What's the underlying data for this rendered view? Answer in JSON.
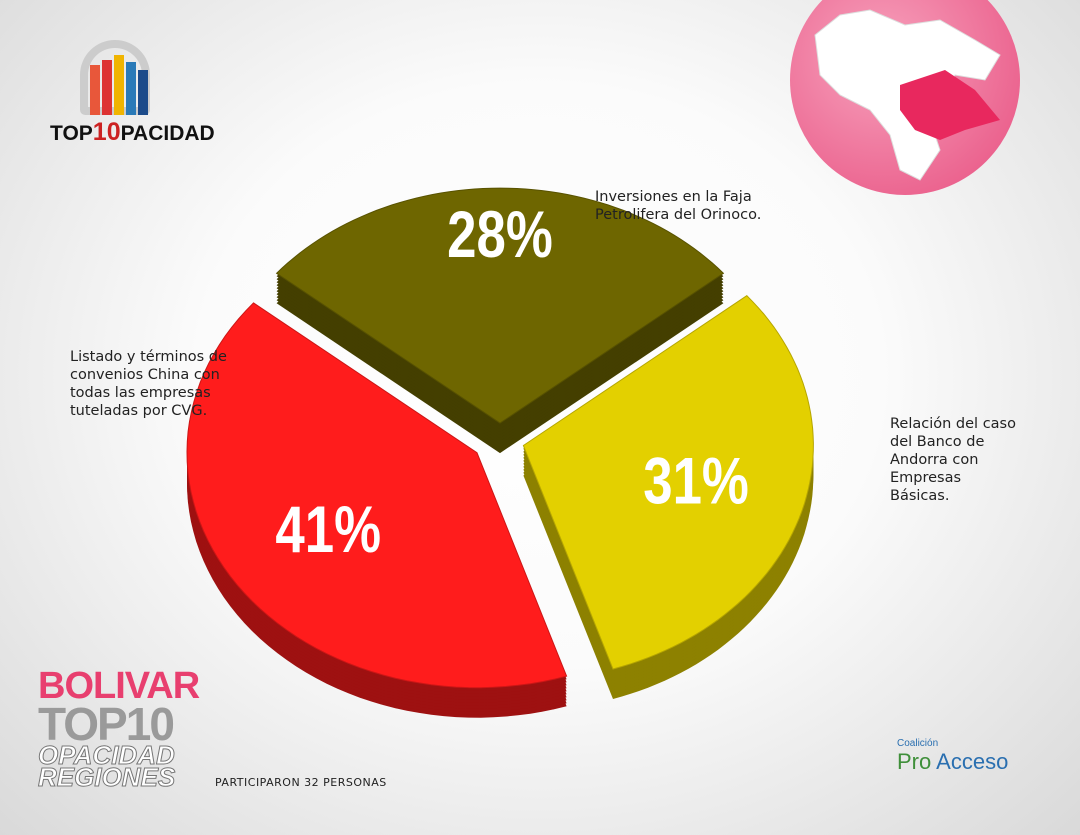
{
  "chart_data": {
    "type": "pie",
    "categories": [
      "Listado y términos de convenios China con todas las empresas tuteladas por CVG.",
      "Inversiones en la Faja Petrolifera del Orinoco.",
      "Relación del caso del Banco de Andorra con Empresas Básicas."
    ],
    "values": [
      41,
      28,
      31
    ],
    "value_labels": [
      "41%",
      "28%",
      "31%"
    ],
    "colors": [
      "#ff1c1c",
      "#6e6600",
      "#e3d000"
    ],
    "footnote": "PARTICIPARON 32 PERSONAS"
  },
  "top_logo": {
    "parts": [
      "TOP",
      "10",
      "PACIDAD"
    ]
  },
  "region_logo": {
    "region": "BOLIVAR",
    "top": "TOP10",
    "line1": "OPACIDAD",
    "line2": "REGIONES"
  },
  "partner_logo": {
    "small": "Coalición",
    "name1": "Pro",
    "name2": "Acceso"
  }
}
